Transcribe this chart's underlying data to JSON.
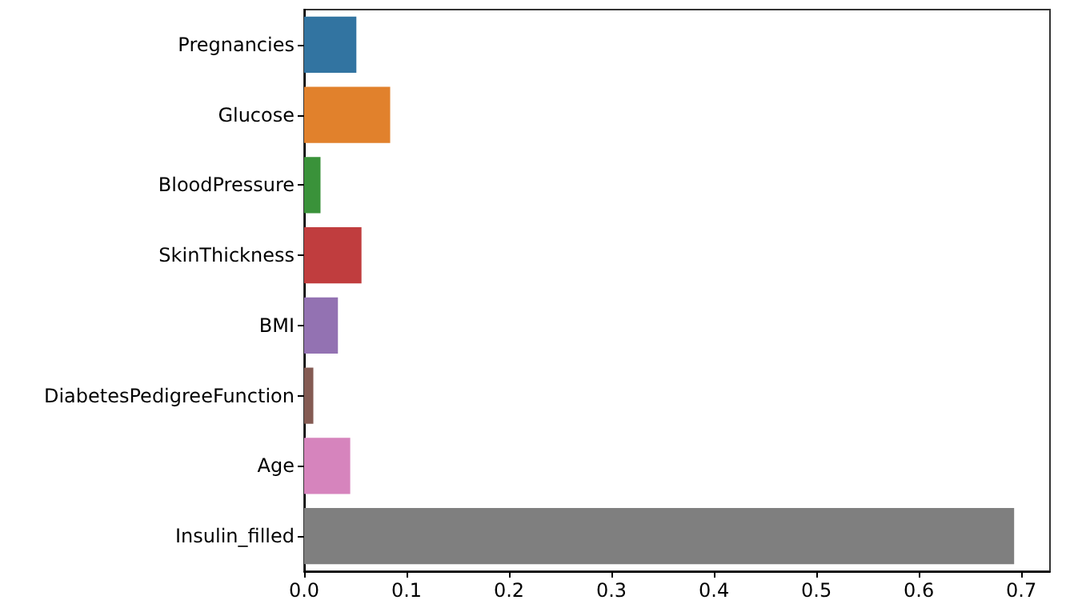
{
  "chart_data": {
    "type": "bar",
    "orientation": "horizontal",
    "categories": [
      "Pregnancies",
      "Glucose",
      "BloodPressure",
      "SkinThickness",
      "BMI",
      "DiabetesPedigreeFunction",
      "Age",
      "Insulin_filled"
    ],
    "values": [
      0.051,
      0.084,
      0.016,
      0.056,
      0.033,
      0.009,
      0.045,
      0.693
    ],
    "colors": [
      "#3274a1",
      "#e1812c",
      "#3a923a",
      "#c03d3e",
      "#9372b2",
      "#845b53",
      "#d684bd",
      "#7f7f7f"
    ],
    "xlim": [
      0,
      0.728
    ],
    "xticks": [
      {
        "value": 0,
        "label": "0.0"
      },
      0.1,
      0.2,
      0.3,
      0.4,
      0.5,
      0.6,
      0.7
    ],
    "grid": false
  }
}
